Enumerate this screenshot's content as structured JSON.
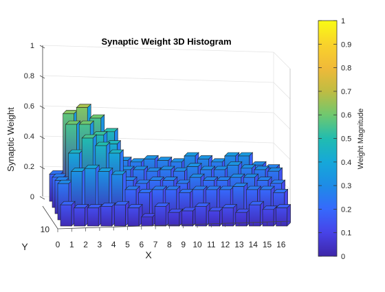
{
  "chart_data": {
    "type": "bar3d",
    "title": "Synaptic Weight 3D Histogram",
    "xlabel": "X",
    "ylabel": "Y",
    "zlabel": "Synaptic Weight",
    "x_ticks": [
      "0",
      "1",
      "2",
      "3",
      "4",
      "5",
      "6",
      "7",
      "8",
      "9",
      "10",
      "11",
      "12",
      "13",
      "14",
      "15",
      "16"
    ],
    "y_ticks": [
      "10"
    ],
    "z_ticks": [
      "0",
      "0.2",
      "0.4",
      "0.6",
      "0.8",
      "1"
    ],
    "zlim": [
      0,
      1
    ],
    "grid": true,
    "colormap": "parula",
    "colorbar": {
      "label": "Weight Magnitude",
      "ticks": [
        "0",
        "0.1",
        "0.2",
        "0.3",
        "0.4",
        "0.5",
        "0.6",
        "0.7",
        "0.8",
        "0.9",
        "1"
      ],
      "range": [
        0,
        1
      ]
    },
    "front_row_values": [
      0.14,
      0.12,
      0.12,
      0.13,
      0.14,
      0.12,
      0.06,
      0.13,
      0.09,
      0.1,
      0.13,
      0.1,
      0.12,
      0.09,
      0.14,
      0.11,
      0.12
    ],
    "back_rows": [
      [
        0.18,
        0.58,
        0.62,
        0.55,
        0.46,
        0.27,
        0.26,
        0.28,
        0.27,
        0.26,
        0.3,
        0.28,
        0.26,
        0.3,
        0.3,
        0.24,
        0.22
      ],
      [
        0.2,
        0.55,
        0.55,
        0.48,
        0.42,
        0.25,
        0.25,
        0.24,
        0.25,
        0.24,
        0.27,
        0.25,
        0.25,
        0.28,
        0.26,
        0.25,
        0.24
      ],
      [
        0.22,
        0.4,
        0.5,
        0.45,
        0.4,
        0.22,
        0.2,
        0.22,
        0.22,
        0.2,
        0.24,
        0.22,
        0.22,
        0.24,
        0.24,
        0.22,
        0.2
      ],
      [
        0.24,
        0.32,
        0.34,
        0.32,
        0.3,
        0.2,
        0.18,
        0.2,
        0.2,
        0.18,
        0.2,
        0.2,
        0.2,
        0.22,
        0.2,
        0.2,
        0.18
      ]
    ]
  }
}
